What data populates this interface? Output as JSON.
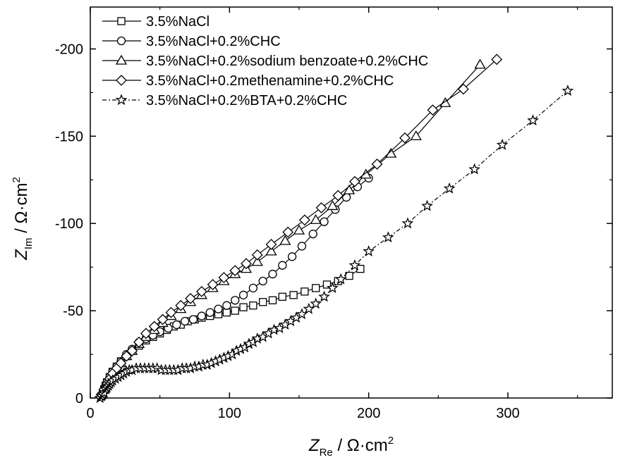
{
  "chart_data": {
    "type": "scatter",
    "x_axis": {
      "label_symbol": "Z",
      "label_subscript": "Re",
      "label_unit": " / Ω·cm",
      "label_sup": "2",
      "lim": [
        0,
        375
      ],
      "ticks": [
        0,
        100,
        200,
        300
      ],
      "tick_labels": [
        "0",
        "100",
        "200",
        "300"
      ]
    },
    "y_axis": {
      "label_symbol": "Z",
      "label_subscript": "Im",
      "label_unit": " / Ω·cm",
      "label_sup": "2",
      "lim": [
        0,
        224
      ],
      "inverted_sign_labels": true,
      "ticks": [
        0,
        50,
        100,
        150,
        200
      ],
      "tick_labels": [
        "0",
        "-50",
        "-100",
        "-150",
        "-200"
      ]
    },
    "grid": false,
    "legend_position": "top-left",
    "series": [
      {
        "name": "3.5%NaCl",
        "marker": "square",
        "line": "solid",
        "x": [
          8,
          9,
          10,
          11,
          12,
          14,
          16,
          19,
          22,
          26,
          30,
          35,
          40,
          45,
          50,
          55,
          60,
          65,
          70,
          75,
          80,
          86,
          92,
          98,
          104,
          110,
          117,
          124,
          131,
          138,
          146,
          154,
          162,
          170,
          178,
          186,
          194
        ],
        "y": [
          1,
          3,
          5,
          7,
          9,
          12,
          15,
          18,
          21,
          24,
          27,
          30,
          33,
          35,
          37,
          39,
          41,
          42,
          44,
          45,
          46,
          47,
          48,
          49,
          50,
          52,
          53,
          55,
          56,
          58,
          59,
          61,
          63,
          65,
          67,
          70,
          74
        ]
      },
      {
        "name": "3.5%NaCl+0.2%CHC",
        "marker": "circle",
        "line": "solid",
        "x": [
          8,
          9,
          10,
          11,
          12,
          14,
          16,
          19,
          22,
          26,
          30,
          35,
          40,
          45,
          50,
          56,
          62,
          68,
          74,
          80,
          86,
          92,
          98,
          104,
          110,
          117,
          124,
          131,
          138,
          145,
          152,
          160,
          168,
          176,
          184,
          192,
          200
        ],
        "y": [
          1,
          3,
          5,
          7,
          9,
          12,
          15,
          18,
          21,
          25,
          28,
          32,
          34,
          36,
          38,
          40,
          42,
          44,
          45,
          47,
          49,
          51,
          53,
          56,
          59,
          63,
          67,
          71,
          76,
          81,
          87,
          94,
          101,
          108,
          115,
          121,
          126
        ]
      },
      {
        "name": "3.5%NaCl+0.2%sodium benzoate+0.2%CHC",
        "marker": "triangle",
        "line": "solid",
        "x": [
          8,
          10,
          12,
          14,
          16,
          19,
          22,
          26,
          30,
          35,
          40,
          46,
          52,
          58,
          65,
          72,
          80,
          88,
          96,
          104,
          112,
          120,
          130,
          140,
          150,
          162,
          174,
          186,
          198,
          216,
          234,
          255,
          280
        ],
        "y": [
          2,
          5,
          8,
          11,
          14,
          17,
          20,
          24,
          27,
          31,
          35,
          39,
          43,
          47,
          51,
          55,
          59,
          63,
          67,
          71,
          74,
          78,
          84,
          90,
          96,
          102,
          110,
          119,
          128,
          140,
          150,
          169,
          191
        ]
      },
      {
        "name": "3.5%NaCl+0.2methenamine+0.2%CHC",
        "marker": "diamond",
        "line": "solid",
        "x": [
          8,
          10,
          12,
          14,
          16,
          19,
          22,
          26,
          30,
          35,
          40,
          46,
          52,
          58,
          65,
          72,
          80,
          88,
          96,
          104,
          112,
          120,
          130,
          142,
          154,
          166,
          178,
          190,
          206,
          226,
          246,
          268,
          292
        ],
        "y": [
          2,
          5,
          8,
          11,
          14,
          17,
          20,
          24,
          27,
          32,
          37,
          41,
          45,
          49,
          53,
          57,
          61,
          65,
          69,
          73,
          77,
          82,
          88,
          95,
          102,
          109,
          116,
          124,
          134,
          149,
          165,
          177,
          194
        ]
      },
      {
        "name": "3.5%NaCl+0.2%BTA+0.2%CHC",
        "marker": "star",
        "line": "dash",
        "x": [
          7,
          8,
          9,
          10,
          11,
          12,
          13,
          14,
          15,
          16,
          18,
          20,
          22,
          24,
          26,
          28,
          30,
          33,
          36,
          39,
          42,
          45,
          48,
          51,
          54,
          57,
          60,
          63,
          66,
          69,
          72,
          75,
          78,
          81,
          84,
          87,
          90,
          93,
          96,
          99,
          102,
          105,
          108,
          111,
          114,
          117,
          120,
          124,
          128,
          132,
          136,
          140,
          144,
          148,
          152,
          157,
          162,
          168,
          174,
          180,
          190,
          200,
          214,
          228,
          242,
          258,
          276,
          296,
          318,
          343
        ],
        "y": [
          0,
          1,
          2,
          3,
          5,
          6,
          7,
          8,
          9,
          10,
          11,
          12,
          13,
          14,
          15,
          16,
          16,
          17,
          17,
          17,
          17,
          17,
          17,
          16,
          16,
          16,
          16,
          16,
          17,
          17,
          17,
          18,
          18,
          19,
          19,
          20,
          21,
          22,
          23,
          24,
          25,
          27,
          28,
          29,
          31,
          32,
          34,
          35,
          37,
          39,
          40,
          42,
          44,
          46,
          48,
          51,
          54,
          58,
          63,
          68,
          76,
          84,
          92,
          100,
          110,
          120,
          131,
          145,
          159,
          176
        ]
      }
    ]
  }
}
